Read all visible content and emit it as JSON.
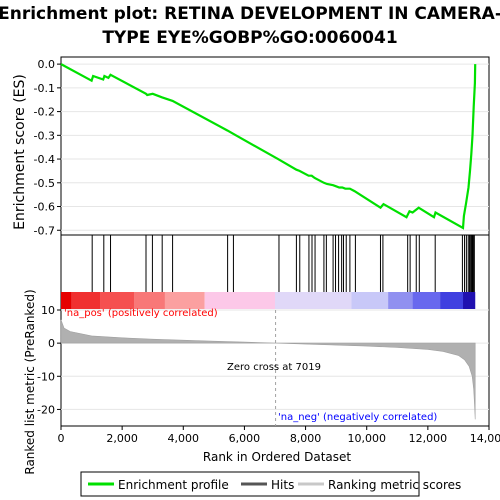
{
  "title_line1": "Enrichment plot: RETINA DEVELOPMENT IN CAMERA-",
  "title_line2": "TYPE EYE%GOBP%GO:0060041",
  "ylabel_top": "Enrichment score (ES)",
  "ylabel_bottom": "Ranked list metric (PreRanked)",
  "xlabel": "Rank in Ordered Dataset",
  "zero_cross_label": "Zero cross at 7019",
  "pos_label": "'na_pos' (positively correlated)",
  "neg_label": "'na_neg' (negatively correlated)",
  "legend": {
    "enrichment": "Enrichment profile",
    "hits": "Hits",
    "ranking": "Ranking metric scores"
  },
  "colors": {
    "enrichment": "#00e000",
    "hits": "#000000",
    "metric_fill": "#b0b0b0",
    "pos_label": "#ff0000",
    "neg_label": "#0000ff"
  },
  "chart_data": {
    "type": "line",
    "n_genes": 13550,
    "zero_cross": 7019,
    "es_plot": {
      "xlim": [
        0,
        14000
      ],
      "ylim": [
        -0.72,
        0.03
      ],
      "yticks": [
        0.0,
        -0.1,
        -0.2,
        -0.3,
        -0.4,
        -0.5,
        -0.6,
        -0.7
      ],
      "ytick_labels": [
        "0.0",
        "-0.1",
        "-0.2",
        "-0.3",
        "-0.4",
        "-0.5",
        "-0.6",
        "-0.7"
      ],
      "es_profile": [
        [
          0,
          0.0
        ],
        [
          1000,
          -0.07
        ],
        [
          1050,
          -0.05
        ],
        [
          1380,
          -0.065
        ],
        [
          1420,
          -0.05
        ],
        [
          1550,
          -0.058
        ],
        [
          1620,
          -0.045
        ],
        [
          2780,
          -0.125
        ],
        [
          2820,
          -0.13
        ],
        [
          3000,
          -0.125
        ],
        [
          3300,
          -0.14
        ],
        [
          3650,
          -0.155
        ],
        [
          5450,
          -0.28
        ],
        [
          5650,
          -0.295
        ],
        [
          7100,
          -0.4
        ],
        [
          7700,
          -0.445
        ],
        [
          7800,
          -0.45
        ],
        [
          8100,
          -0.47
        ],
        [
          8200,
          -0.47
        ],
        [
          8300,
          -0.48
        ],
        [
          8600,
          -0.5
        ],
        [
          8700,
          -0.505
        ],
        [
          8900,
          -0.51
        ],
        [
          9000,
          -0.515
        ],
        [
          9100,
          -0.52
        ],
        [
          9200,
          -0.52
        ],
        [
          9300,
          -0.525
        ],
        [
          9450,
          -0.525
        ],
        [
          9600,
          -0.535
        ],
        [
          10450,
          -0.605
        ],
        [
          10550,
          -0.59
        ],
        [
          11300,
          -0.645
        ],
        [
          11400,
          -0.62
        ],
        [
          11500,
          -0.625
        ],
        [
          11600,
          -0.615
        ],
        [
          11700,
          -0.605
        ],
        [
          12200,
          -0.645
        ],
        [
          12250,
          -0.625
        ],
        [
          13150,
          -0.69
        ],
        [
          13180,
          -0.64
        ],
        [
          13250,
          -0.585
        ],
        [
          13330,
          -0.52
        ],
        [
          13380,
          -0.45
        ],
        [
          13420,
          -0.38
        ],
        [
          13460,
          -0.3
        ],
        [
          13500,
          -0.18
        ],
        [
          13540,
          -0.08
        ],
        [
          13550,
          0.0
        ]
      ]
    },
    "hits": [
      1020,
      1400,
      1620,
      2780,
      2990,
      3310,
      3650,
      5450,
      5640,
      7130,
      7700,
      7810,
      8110,
      8210,
      8310,
      8600,
      8680,
      8900,
      8980,
      9080,
      9180,
      9240,
      9330,
      9450,
      9630,
      10450,
      10530,
      11340,
      11420,
      11620,
      11720,
      12240,
      13130,
      13200,
      13260,
      13320,
      13360,
      13400,
      13430,
      13460,
      13490,
      13520
    ],
    "metric_plot": {
      "xlim": [
        0,
        14000
      ],
      "ylim": [
        -25,
        10
      ],
      "yticks": [
        10,
        0,
        -10,
        -20
      ],
      "ytick_labels": [
        "10",
        "0",
        "-10",
        "-20"
      ],
      "xticks": [
        0,
        2000,
        4000,
        6000,
        8000,
        10000,
        12000,
        14000
      ],
      "xtick_labels": [
        "0",
        "2,000",
        "4,000",
        "6,000",
        "8,000",
        "10,000",
        "12,000",
        "14,000"
      ],
      "metric_profile": [
        [
          0,
          7.0
        ],
        [
          100,
          4.5
        ],
        [
          300,
          3.5
        ],
        [
          1000,
          2.2
        ],
        [
          2000,
          1.6
        ],
        [
          3000,
          1.2
        ],
        [
          4000,
          0.9
        ],
        [
          5000,
          0.6
        ],
        [
          6000,
          0.3
        ],
        [
          7019,
          0.0
        ],
        [
          8000,
          -0.3
        ],
        [
          9000,
          -0.6
        ],
        [
          10000,
          -0.9
        ],
        [
          11000,
          -1.3
        ],
        [
          12000,
          -1.9
        ],
        [
          12500,
          -2.5
        ],
        [
          13000,
          -3.7
        ],
        [
          13200,
          -5.0
        ],
        [
          13350,
          -7.0
        ],
        [
          13450,
          -10.0
        ],
        [
          13500,
          -14.0
        ],
        [
          13530,
          -19.0
        ],
        [
          13550,
          -23.0
        ]
      ]
    },
    "heatmap_bands": [
      {
        "start": 0,
        "end": 350,
        "color": "#e60000"
      },
      {
        "start": 350,
        "end": 1300,
        "color": "#f03030"
      },
      {
        "start": 1300,
        "end": 2400,
        "color": "#f55050"
      },
      {
        "start": 2400,
        "end": 3400,
        "color": "#f87878"
      },
      {
        "start": 3400,
        "end": 4700,
        "color": "#fba0a0"
      },
      {
        "start": 4700,
        "end": 7000,
        "color": "#fcc8e8"
      },
      {
        "start": 7000,
        "end": 9500,
        "color": "#e0d8f8"
      },
      {
        "start": 9500,
        "end": 10700,
        "color": "#c8c8f8"
      },
      {
        "start": 10700,
        "end": 11500,
        "color": "#9090f0"
      },
      {
        "start": 11500,
        "end": 12400,
        "color": "#6868ee"
      },
      {
        "start": 12400,
        "end": 13150,
        "color": "#4040e0"
      },
      {
        "start": 13150,
        "end": 13550,
        "color": "#2010b0"
      }
    ]
  }
}
